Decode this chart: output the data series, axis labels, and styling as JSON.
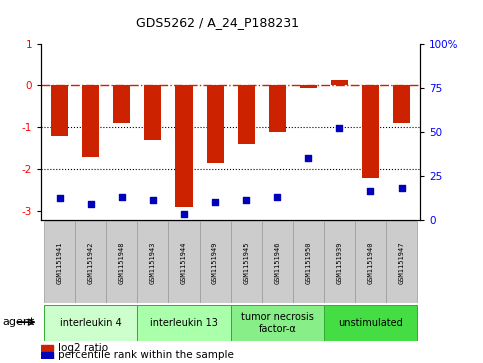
{
  "title": "GDS5262 / A_24_P188231",
  "samples": [
    "GSM1151941",
    "GSM1151942",
    "GSM1151948",
    "GSM1151943",
    "GSM1151944",
    "GSM1151949",
    "GSM1151945",
    "GSM1151946",
    "GSM1151950",
    "GSM1151939",
    "GSM1151940",
    "GSM1151947"
  ],
  "log2_ratio": [
    -1.2,
    -1.7,
    -0.9,
    -1.3,
    -2.9,
    -1.85,
    -1.4,
    -1.1,
    -0.07,
    0.12,
    -2.2,
    -0.9
  ],
  "percentile_rank": [
    12,
    9,
    13,
    11,
    3,
    10,
    11,
    13,
    35,
    52,
    16,
    18
  ],
  "agents": [
    {
      "label": "interleukin 4",
      "start": 0,
      "end": 3,
      "color": "#ccffcc"
    },
    {
      "label": "interleukin 13",
      "start": 3,
      "end": 6,
      "color": "#aaffaa"
    },
    {
      "label": "tumor necrosis\nfactor-α",
      "start": 6,
      "end": 9,
      "color": "#88ee88"
    },
    {
      "label": "unstimulated",
      "start": 9,
      "end": 12,
      "color": "#44dd44"
    }
  ],
  "ylim_left": [
    -3.2,
    1.0
  ],
  "ylim_right": [
    0,
    100
  ],
  "bar_color": "#cc2200",
  "dot_color": "#0000bb",
  "hline_color": "#cc2200",
  "hline_style": "-.",
  "dotline_color": "black",
  "dotline_style": ":",
  "bar_width": 0.55,
  "legend_bar_label": "log2 ratio",
  "legend_dot_label": "percentile rank within the sample",
  "agent_label_color": "#006600",
  "agent_edge_color": "#33aa33",
  "sample_box_color": "#cccccc",
  "sample_edge_color": "#999999"
}
